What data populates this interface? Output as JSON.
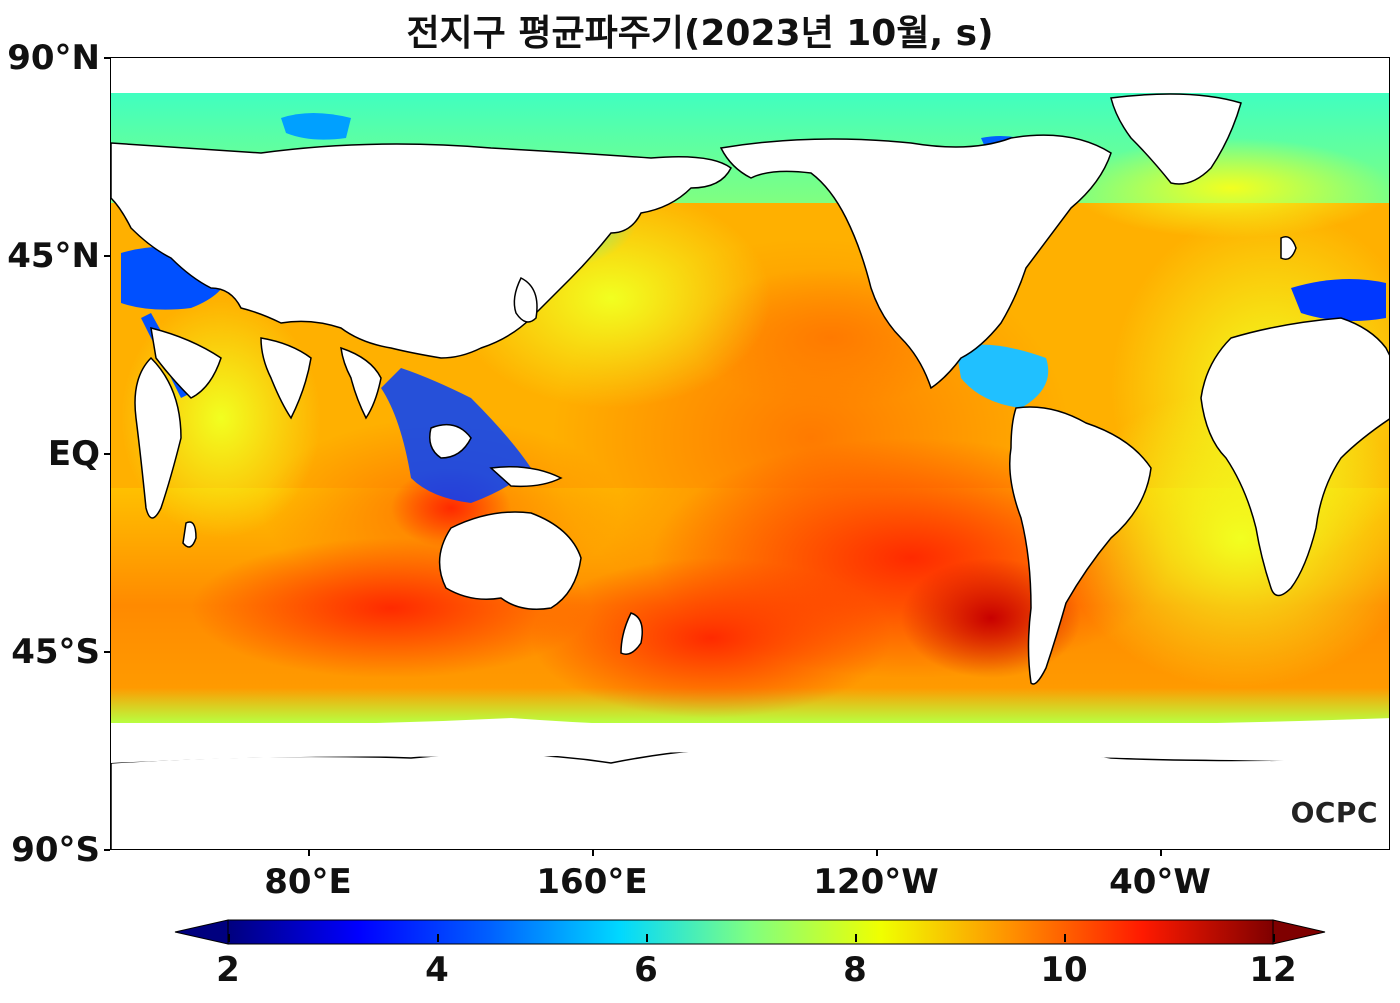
{
  "title": "전지구 평균파주기(2023년 10월, s)",
  "axes": {
    "lat_labels": [
      "90°N",
      "45°N",
      "EQ",
      "45°S",
      "90°S"
    ],
    "lon_labels": [
      "80°E",
      "160°E",
      "120°W",
      "40°W"
    ]
  },
  "colorbar": {
    "min": 2,
    "max": 12,
    "ticks": [
      "2",
      "4",
      "6",
      "8",
      "10",
      "12"
    ],
    "colormap": "jet",
    "extend": "both"
  },
  "watermark": "OCPC",
  "colors": {
    "land": "#ffffff",
    "coast": "#000000",
    "cmap": [
      "#00007f",
      "#0000ff",
      "#0080ff",
      "#00ffff",
      "#80ff80",
      "#ffff00",
      "#ff8000",
      "#ff0000",
      "#7f0000"
    ]
  }
}
